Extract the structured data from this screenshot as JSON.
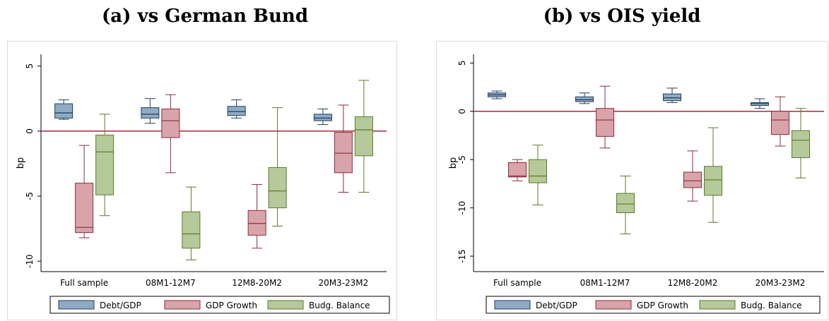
{
  "titles": [
    "(a) vs German Bund",
    "(b) vs OIS yield"
  ],
  "colors": {
    "Debt/GDP": {
      "fill": "#8faac3",
      "stroke": "#1f3f5f"
    },
    "GDP Growth": {
      "fill": "#d9a3aa",
      "stroke": "#8e2c3a"
    },
    "Budg. Balance": {
      "fill": "#b5c99a",
      "stroke": "#5c7a2a"
    },
    "reference_line": "#a0122a"
  },
  "chart_data": [
    {
      "type": "box",
      "title": "(a) vs German Bund",
      "ylabel": "bp",
      "yticks": [
        5,
        0,
        -5,
        -10
      ],
      "ylim": [
        -10.8,
        5.9
      ],
      "reference_line": 0,
      "grid": false,
      "legend_position": "bottom",
      "categories": [
        "Full sample",
        "08M1-12M7",
        "12M8-20M2",
        "20M3-23M2"
      ],
      "series": [
        {
          "name": "Debt/GDP",
          "boxes": [
            {
              "min": 0.9,
              "q1": 1.0,
              "median": 1.4,
              "q3": 2.1,
              "max": 2.4
            },
            {
              "min": 0.6,
              "q1": 1.0,
              "median": 1.3,
              "q3": 1.8,
              "max": 2.5
            },
            {
              "min": 1.0,
              "q1": 1.2,
              "median": 1.5,
              "q3": 1.9,
              "max": 2.4
            },
            {
              "min": 0.5,
              "q1": 0.8,
              "median": 1.0,
              "q3": 1.3,
              "max": 1.7
            }
          ]
        },
        {
          "name": "GDP Growth",
          "boxes": [
            {
              "min": -8.2,
              "q1": -7.8,
              "median": -7.4,
              "q3": -4.0,
              "max": -1.1
            },
            {
              "min": -3.2,
              "q1": -0.5,
              "median": 0.8,
              "q3": 1.7,
              "max": 2.8
            },
            {
              "min": -9.0,
              "q1": -8.0,
              "median": -7.1,
              "q3": -6.1,
              "max": -4.1
            },
            {
              "min": -4.7,
              "q1": -3.2,
              "median": -1.7,
              "q3": -0.1,
              "max": 2.0
            }
          ]
        },
        {
          "name": "Budg. Balance",
          "boxes": [
            {
              "min": -6.5,
              "q1": -4.9,
              "median": -1.6,
              "q3": -0.3,
              "max": 1.3
            },
            {
              "min": -9.9,
              "q1": -9.0,
              "median": -7.9,
              "q3": -6.2,
              "max": -4.3
            },
            {
              "min": -7.3,
              "q1": -5.9,
              "median": -4.6,
              "q3": -2.8,
              "max": 1.8
            },
            {
              "min": -4.7,
              "q1": -1.9,
              "median": 0.1,
              "q3": 1.1,
              "max": 3.9
            }
          ]
        }
      ]
    },
    {
      "type": "box",
      "title": "(b) vs OIS yield",
      "ylabel": "bp",
      "yticks": [
        5,
        0,
        -5,
        -10,
        -15
      ],
      "ylim": [
        -16.6,
        5.9
      ],
      "reference_line": 0,
      "grid": false,
      "legend_position": "bottom",
      "categories": [
        "Full sample",
        "08M1-12M7",
        "12M8-20M2",
        "20M3-23M2"
      ],
      "series": [
        {
          "name": "Debt/GDP",
          "boxes": [
            {
              "min": 1.3,
              "q1": 1.5,
              "median": 1.7,
              "q3": 1.9,
              "max": 2.1
            },
            {
              "min": 0.8,
              "q1": 1.0,
              "median": 1.2,
              "q3": 1.5,
              "max": 1.9
            },
            {
              "min": 0.9,
              "q1": 1.1,
              "median": 1.4,
              "q3": 1.8,
              "max": 2.4
            },
            {
              "min": 0.3,
              "q1": 0.6,
              "median": 0.8,
              "q3": 0.9,
              "max": 1.3
            }
          ]
        },
        {
          "name": "GDP Growth",
          "boxes": [
            {
              "min": -7.2,
              "q1": -6.8,
              "median": -6.7,
              "q3": -5.3,
              "max": -5.0
            },
            {
              "min": -3.8,
              "q1": -2.6,
              "median": -0.9,
              "q3": 0.3,
              "max": 2.6
            },
            {
              "min": -9.3,
              "q1": -7.9,
              "median": -7.2,
              "q3": -6.3,
              "max": -4.1
            },
            {
              "min": -3.6,
              "q1": -2.4,
              "median": -0.9,
              "q3": 0.0,
              "max": 1.5
            }
          ]
        },
        {
          "name": "Budg. Balance",
          "boxes": [
            {
              "min": -9.7,
              "q1": -7.4,
              "median": -6.7,
              "q3": -5.0,
              "max": -3.5
            },
            {
              "min": -12.7,
              "q1": -10.5,
              "median": -9.6,
              "q3": -8.5,
              "max": -6.7
            },
            {
              "min": -11.5,
              "q1": -8.7,
              "median": -7.1,
              "q3": -5.7,
              "max": -1.7
            },
            {
              "min": -6.9,
              "q1": -4.8,
              "median": -3.0,
              "q3": -2.0,
              "max": 0.3
            }
          ]
        }
      ]
    }
  ]
}
